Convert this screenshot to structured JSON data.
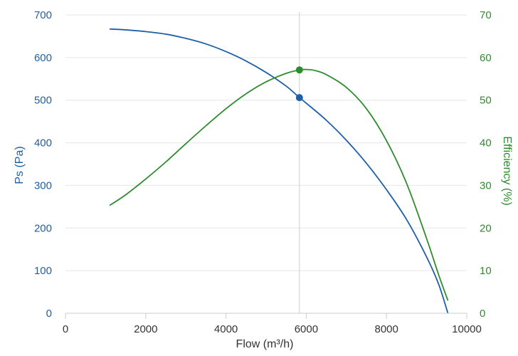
{
  "chart_data": {
    "type": "line",
    "xlabel": "Flow (m³/h)",
    "ylabel_left": "Ps (Pa)",
    "ylabel_right": "Efficiency (%)",
    "xlim": [
      0,
      10000
    ],
    "ylim_left": [
      0,
      700
    ],
    "ylim_right": [
      0,
      70
    ],
    "x_ticks": [
      0,
      2000,
      4000,
      6000,
      8000,
      10000
    ],
    "y_left_ticks": [
      0,
      100,
      200,
      300,
      400,
      500,
      600,
      700
    ],
    "y_right_ticks": [
      0,
      10,
      20,
      30,
      40,
      50,
      60,
      70
    ],
    "grid": "horizontal",
    "operating_point_x": 5830,
    "colors": {
      "pressure": "#1f5fa8",
      "efficiency": "#2e8b2e",
      "axis_text_x": "#333333",
      "grid": "#e6e6e6",
      "cursor": "#cccccc"
    },
    "series": [
      {
        "axis": "left",
        "x": [
          1100,
          1500,
          2000,
          2500,
          3000,
          3500,
          4000,
          4500,
          5000,
          5500,
          5830,
          6000,
          6500,
          7000,
          7500,
          8000,
          8500,
          9000,
          9300,
          9530
        ],
        "y": [
          667,
          665,
          661,
          655,
          645,
          632,
          614,
          592,
          565,
          533,
          506,
          493,
          453,
          406,
          352,
          290,
          220,
          132,
          68,
          0
        ]
      },
      {
        "axis": "right",
        "x": [
          1100,
          1500,
          2000,
          2500,
          3000,
          3500,
          4000,
          4500,
          5000,
          5500,
          5830,
          6000,
          6200,
          6500,
          7000,
          7500,
          8000,
          8500,
          9000,
          9300,
          9530
        ],
        "y": [
          25.3,
          27.8,
          31.5,
          35.5,
          39.8,
          44.0,
          48.0,
          51.5,
          54.3,
          56.3,
          57.1,
          57.2,
          57.0,
          56.0,
          53.0,
          48.0,
          40.5,
          30.5,
          17.5,
          9.0,
          3.0
        ]
      }
    ],
    "markers": [
      {
        "axis": "left",
        "x": 5830,
        "y": 506
      },
      {
        "axis": "right",
        "x": 5830,
        "y": 57.1
      }
    ]
  }
}
